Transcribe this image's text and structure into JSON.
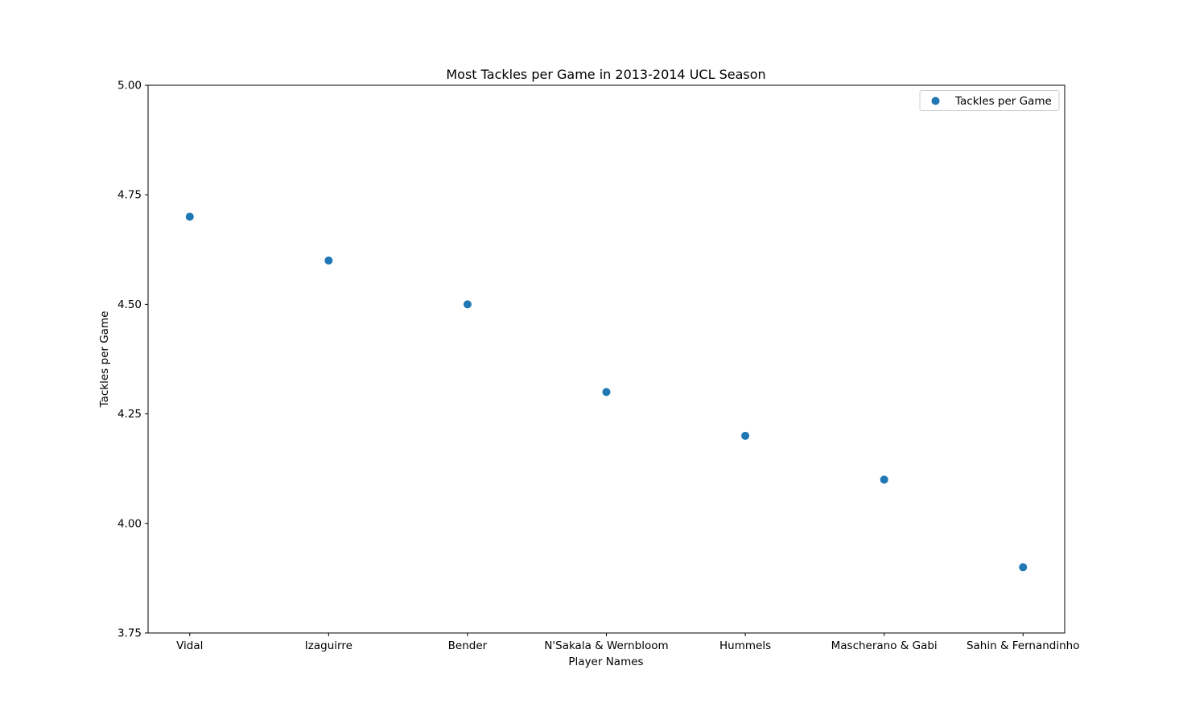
{
  "chart_data": {
    "type": "scatter",
    "title": "Most Tackles per Game in 2013-2014 UCL Season",
    "xlabel": "Player Names",
    "ylabel": "Tackles per Game",
    "categories": [
      "Vidal",
      "Izaguirre",
      "Bender",
      "N'Sakala & Wernbloom",
      "Hummels",
      "Mascherano & Gabi",
      "Sahin & Fernandinho"
    ],
    "series": [
      {
        "name": "Tackles per Game",
        "values": [
          4.7,
          4.6,
          4.5,
          4.3,
          4.2,
          4.1,
          3.9
        ],
        "color": "#1f77b4"
      }
    ],
    "ylim": [
      3.75,
      5.0
    ],
    "yticks": [
      "3.75",
      "4.00",
      "4.25",
      "4.50",
      "4.75",
      "5.00"
    ],
    "grid": false,
    "legend_position": "top-right"
  }
}
